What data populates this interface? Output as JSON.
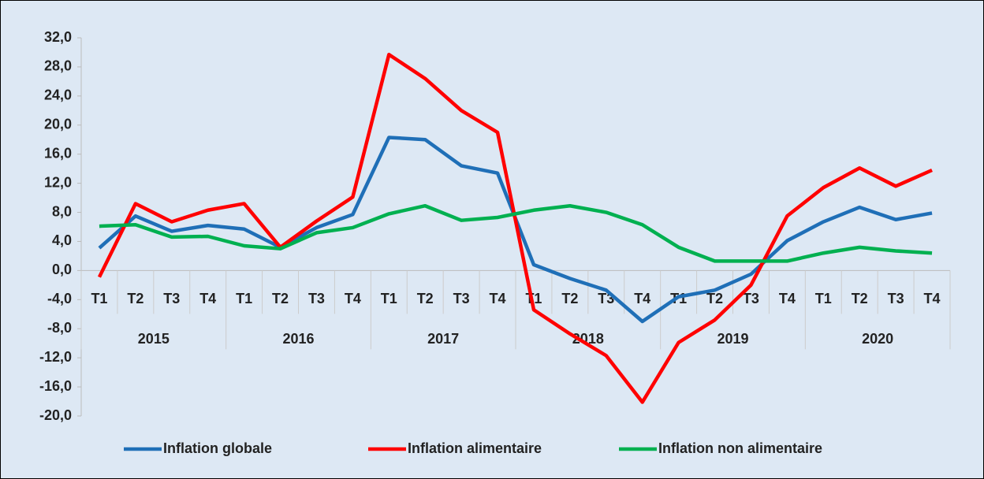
{
  "chart_data": {
    "type": "line",
    "categories": [
      "T1",
      "T2",
      "T3",
      "T4",
      "T1",
      "T2",
      "T3",
      "T4",
      "T1",
      "T2",
      "T3",
      "T4",
      "T1",
      "T2",
      "T3",
      "T4",
      "T1",
      "T2",
      "T3",
      "T4",
      "T1",
      "T2",
      "T3",
      "T4"
    ],
    "years": [
      "2015",
      "2016",
      "2017",
      "2018",
      "2019",
      "2020"
    ],
    "series": [
      {
        "name": "Inflation globale",
        "color": "#1f6fb7",
        "values": [
          3.1,
          7.5,
          5.4,
          6.2,
          5.7,
          3.2,
          5.9,
          7.7,
          18.3,
          18.0,
          14.4,
          13.4,
          0.8,
          -1.1,
          -2.7,
          -7.0,
          -3.6,
          -2.7,
          -0.5,
          4.1,
          6.7,
          8.7,
          7.0,
          7.9
        ]
      },
      {
        "name": "Inflation alimentaire",
        "color": "#ff0000",
        "values": [
          -0.9,
          9.2,
          6.7,
          8.3,
          9.2,
          3.2,
          6.8,
          10.1,
          29.7,
          26.4,
          22.0,
          19.0,
          -5.4,
          -8.7,
          -11.7,
          -18.1,
          -9.9,
          -6.8,
          -2.0,
          7.5,
          11.4,
          14.1,
          11.6,
          13.8
        ]
      },
      {
        "name": "Inflation non alimentaire",
        "color": "#00b050",
        "values": [
          6.1,
          6.3,
          4.6,
          4.7,
          3.4,
          3.0,
          5.2,
          5.9,
          7.8,
          8.9,
          6.9,
          7.3,
          8.3,
          8.9,
          8.0,
          6.3,
          3.2,
          1.3,
          1.3,
          1.3,
          2.4,
          3.2,
          2.7,
          2.4
        ]
      }
    ],
    "ylim": [
      -20,
      32
    ],
    "yticks": [
      {
        "value": 32,
        "label": "32,0"
      },
      {
        "value": 28,
        "label": "28,0"
      },
      {
        "value": 24,
        "label": "24,0"
      },
      {
        "value": 20,
        "label": "20,0"
      },
      {
        "value": 16,
        "label": "16,0"
      },
      {
        "value": 12,
        "label": "12,0"
      },
      {
        "value": 8,
        "label": "8,0"
      },
      {
        "value": 4,
        "label": "4,0"
      },
      {
        "value": 0,
        "label": "0,0"
      },
      {
        "value": -4,
        "label": "-4,0"
      },
      {
        "value": -8,
        "label": "-8,0"
      },
      {
        "value": -12,
        "label": "-12,0"
      },
      {
        "value": -16,
        "label": "-16,0"
      },
      {
        "value": -20,
        "label": "-20,0"
      }
    ],
    "legend": "bottom"
  }
}
